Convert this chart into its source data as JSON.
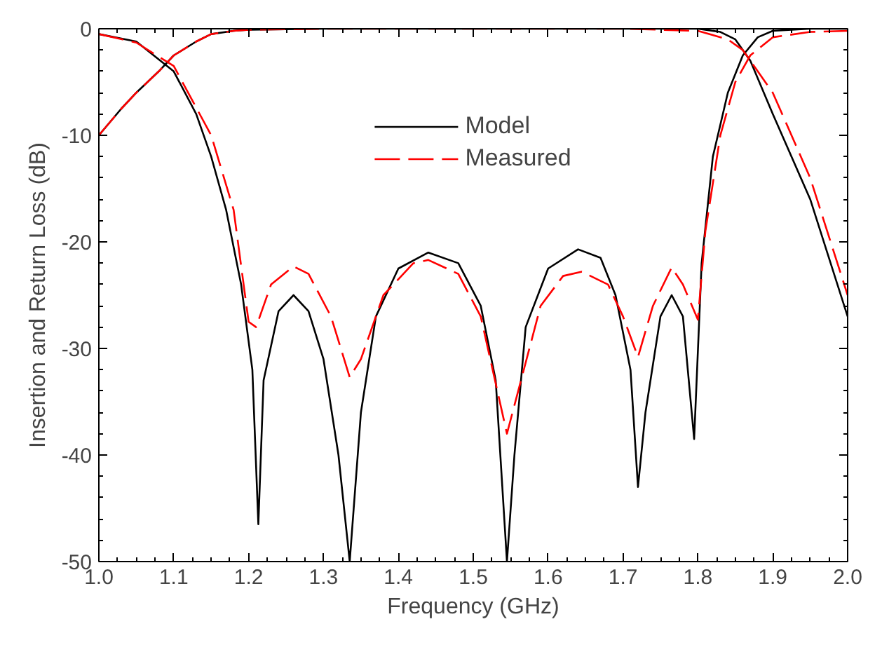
{
  "chart_data": {
    "type": "line",
    "xlabel": "Frequency (GHz)",
    "ylabel": "Insertion and Return Loss (dB)",
    "xlim": [
      1.0,
      2.0
    ],
    "ylim": [
      -50,
      0
    ],
    "xticks": [
      {
        "value": 1.0,
        "label": "1.0"
      },
      1.1,
      1.2,
      1.3,
      1.4,
      1.5,
      1.6,
      1.7,
      1.8,
      1.9,
      {
        "value": 2.0,
        "label": "2.0"
      }
    ],
    "yticks": [
      -50,
      -40,
      -30,
      -20,
      -10,
      0
    ],
    "grid": false,
    "legend": "top center",
    "marker": "none",
    "series": [
      {
        "name": "Model",
        "color": "#000000",
        "line_style": "solid",
        "x": [
          1.0,
          1.05,
          1.1,
          1.13,
          1.15,
          1.17,
          1.19,
          1.205,
          1.213,
          1.22,
          1.24,
          1.26,
          1.28,
          1.3,
          1.32,
          1.335,
          1.35,
          1.37,
          1.4,
          1.44,
          1.48,
          1.51,
          1.53,
          1.545,
          1.555,
          1.57,
          1.6,
          1.64,
          1.67,
          1.69,
          1.71,
          1.72,
          1.73,
          1.75,
          1.765,
          1.78,
          1.795,
          1.805,
          1.82,
          1.84,
          1.86,
          1.88,
          1.9,
          1.95,
          2.0
        ],
        "values": [
          -0.5,
          -1.2,
          -4,
          -8,
          -12,
          -17,
          -24,
          -32,
          -46.5,
          -33,
          -26.5,
          -25,
          -26.5,
          -31,
          -40,
          -50,
          -36,
          -27,
          -22.5,
          -21,
          -22,
          -26,
          -33,
          -50,
          -40,
          -28,
          -22.5,
          -20.7,
          -21.5,
          -25,
          -32,
          -43,
          -36,
          -27,
          -25,
          -27,
          -38.5,
          -22,
          -12,
          -6,
          -2.5,
          -0.8,
          -0.2,
          0,
          0
        ]
      },
      {
        "color": "#000000",
        "line_style": "solid",
        "x": [
          1.0,
          1.03,
          1.05,
          1.08,
          1.1,
          1.13,
          1.15,
          1.18,
          1.2,
          1.3,
          1.5,
          1.7,
          1.8,
          1.83,
          1.85,
          1.87,
          1.9,
          1.95,
          2.0
        ],
        "values": [
          -10,
          -7.5,
          -6,
          -4,
          -2.5,
          -1.2,
          -0.5,
          -0.2,
          -0.1,
          0,
          0,
          0,
          0,
          -0.3,
          -1,
          -3,
          -8,
          -16,
          -27
        ]
      },
      {
        "name": "Measured",
        "color": "#ff0000",
        "line_style": "dashed",
        "x": [
          1.0,
          1.05,
          1.1,
          1.15,
          1.18,
          1.2,
          1.21,
          1.23,
          1.26,
          1.28,
          1.31,
          1.335,
          1.35,
          1.38,
          1.42,
          1.44,
          1.48,
          1.51,
          1.545,
          1.56,
          1.59,
          1.62,
          1.645,
          1.68,
          1.7,
          1.72,
          1.74,
          1.765,
          1.78,
          1.8,
          1.81,
          1.83,
          1.85,
          1.87,
          1.9,
          1.95,
          2.0
        ],
        "values": [
          -0.5,
          -1.3,
          -3.5,
          -10,
          -17,
          -27.5,
          -28,
          -24,
          -22.3,
          -23,
          -27,
          -32.7,
          -31,
          -25,
          -22,
          -21.7,
          -23,
          -27,
          -38,
          -34,
          -26,
          -23.2,
          -22.8,
          -24,
          -27,
          -30.8,
          -26,
          -22.4,
          -24,
          -27.3,
          -19,
          -10,
          -5,
          -2.5,
          -0.8,
          -0.3,
          -0.2
        ]
      },
      {
        "color": "#ff0000",
        "line_style": "dashed",
        "x": [
          1.0,
          1.03,
          1.05,
          1.08,
          1.1,
          1.13,
          1.15,
          1.18,
          1.2,
          1.3,
          1.5,
          1.7,
          1.8,
          1.84,
          1.86,
          1.88,
          1.9,
          1.95,
          2.0
        ],
        "values": [
          -10,
          -7.5,
          -6,
          -4,
          -2.5,
          -1.2,
          -0.5,
          -0.2,
          -0.1,
          0,
          0,
          0,
          -0.2,
          -1,
          -2,
          -4,
          -6,
          -14,
          -25
        ]
      }
    ]
  }
}
